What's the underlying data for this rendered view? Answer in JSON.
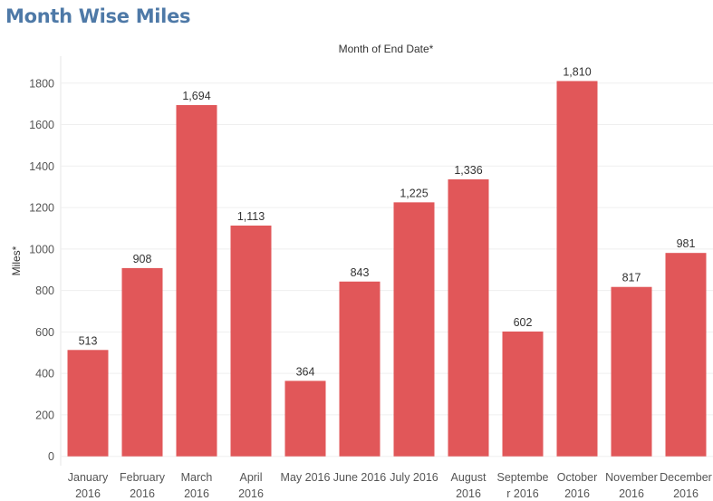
{
  "page_title": "Month Wise Miles",
  "chart_data": {
    "type": "bar",
    "title": "Month Wise Miles",
    "column_header": "Month of End Date*",
    "ylabel": "Miles*",
    "xlabel": "",
    "ylim": [
      -45,
      1930
    ],
    "yticks": [
      0,
      200,
      400,
      600,
      800,
      1000,
      1200,
      1400,
      1600,
      1800
    ],
    "ytick_labels": [
      "0",
      "200",
      "400",
      "600",
      "800",
      "1000",
      "1200",
      "1400",
      "1600",
      "1800"
    ],
    "category_lines": [
      [
        "January",
        "2016"
      ],
      [
        "February",
        "2016"
      ],
      [
        "March",
        "2016"
      ],
      [
        "April",
        "2016"
      ],
      [
        "May 2016",
        ""
      ],
      [
        "June 2016",
        ""
      ],
      [
        "July 2016",
        ""
      ],
      [
        "August",
        "2016"
      ],
      [
        "Septembe",
        "r 2016"
      ],
      [
        "October",
        "2016"
      ],
      [
        "November",
        "2016"
      ],
      [
        "December",
        "2016"
      ]
    ],
    "values": [
      513,
      908,
      1694,
      1113,
      364,
      843,
      1225,
      1336,
      602,
      1810,
      817,
      981
    ],
    "value_labels": [
      "513",
      "908",
      "1,694",
      "1,113",
      "364",
      "843",
      "1,225",
      "1,336",
      "602",
      "1,810",
      "817",
      "981"
    ],
    "bar_color": "#e15759",
    "grid": true
  }
}
